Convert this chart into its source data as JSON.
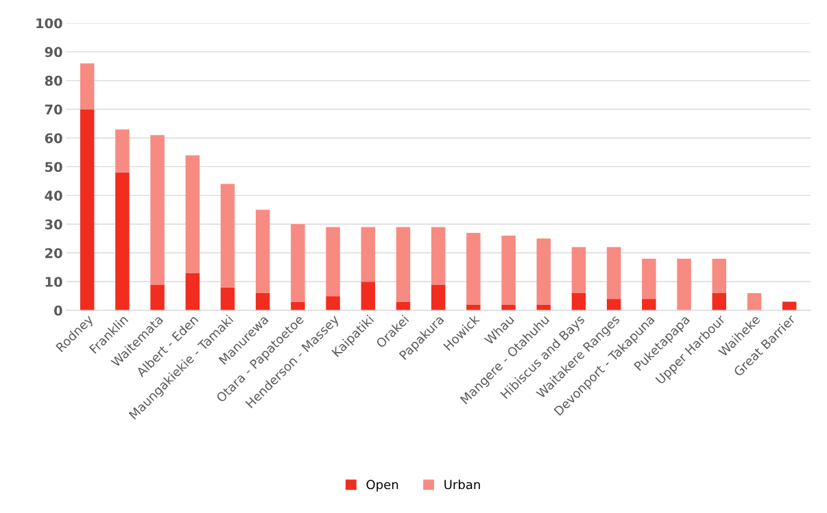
{
  "chart_data": {
    "type": "bar",
    "stacked": true,
    "categories": [
      "Rodney",
      "Franklin",
      "Waitemata",
      "Albert - Eden",
      "Maungakiekie - Tamaki",
      "Manurewa",
      "Otara - Papatoetoe",
      "Henderson - Massey",
      "Kaipatiki",
      "Orakei",
      "Papakura",
      "Howick",
      "Whau",
      "Mangere - Otahuhu",
      "Hibiscus and Bays",
      "Waitakere Ranges",
      "Devonport - Takapuna",
      "Puketapapa",
      "Upper Harbour",
      "Waiheke",
      "Great Barrier"
    ],
    "series": [
      {
        "name": "Open",
        "color": "#f12d20",
        "values": [
          70,
          48,
          9,
          13,
          8,
          6,
          3,
          5,
          10,
          3,
          9,
          2,
          2,
          2,
          6,
          4,
          4,
          0,
          6,
          0,
          3
        ]
      },
      {
        "name": "Urban",
        "color": "#f78b82",
        "values": [
          16,
          15,
          52,
          41,
          36,
          29,
          27,
          24,
          19,
          26,
          20,
          25,
          24,
          23,
          16,
          18,
          14,
          18,
          12,
          6,
          0
        ]
      }
    ],
    "ylim": [
      0,
      100
    ],
    "yticks": [
      0,
      10,
      20,
      30,
      40,
      50,
      60,
      70,
      80,
      90,
      100
    ],
    "grid": "y",
    "legend": "bottom"
  }
}
